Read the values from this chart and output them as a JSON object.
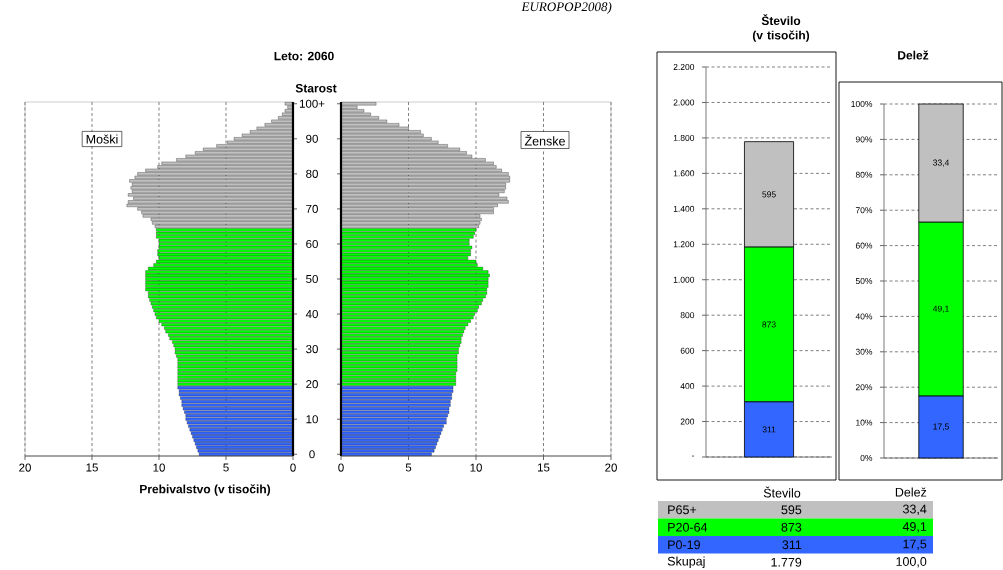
{
  "chart_data": [
    {
      "type": "bar",
      "orientation": "horizontal",
      "categories": [
        null,
        null,
        null,
        null,
        null,
        null,
        null,
        null,
        null,
        null,
        null,
        null,
        null,
        null,
        null,
        null,
        null,
        null,
        null,
        null,
        null,
        null,
        null,
        null,
        null,
        null,
        null,
        null,
        null,
        null,
        null,
        null,
        null,
        null,
        null,
        null,
        null,
        null,
        null,
        null,
        null,
        null,
        null,
        null,
        null,
        null,
        null,
        null,
        null,
        null,
        null,
        null,
        null,
        null,
        null,
        null,
        null,
        null,
        null,
        null,
        null,
        null,
        null,
        null,
        null,
        null,
        null,
        null,
        null,
        null,
        null,
        null,
        null,
        null,
        null,
        null,
        null,
        null,
        null,
        null,
        null,
        null,
        null,
        null,
        null,
        null,
        null,
        null,
        null,
        null,
        null,
        null,
        null,
        null,
        null,
        null,
        null,
        null,
        null,
        null,
        null
      ],
      "values": [
        0.6,
        0.4,
        0.6,
        0.8,
        1.1,
        1.6,
        2.1,
        2.7,
        3.2,
        3.8,
        4.4,
        4.9,
        5.7,
        6.7,
        7.3,
        8.0,
        8.7,
        9.8,
        10.1,
        11.0,
        11.6,
        11.8,
        12.2,
        12.0,
        12.1,
        12.0,
        12.3,
        11.9,
        12.3,
        12.4,
        11.6,
        11.3,
        11.2,
        10.6,
        10.5,
        10.3,
        10.2,
        10.2,
        10.2,
        10.0,
        10.0,
        10.0,
        10.1,
        10.1,
        10.0,
        10.2,
        10.4,
        10.8,
        11.0,
        11.0,
        11.0,
        11.0,
        11.0,
        11.0,
        10.8,
        10.8,
        10.7,
        10.6,
        10.5,
        10.4,
        10.3,
        10.2,
        10.0,
        9.8,
        9.6,
        9.5,
        9.3,
        9.2,
        9.0,
        8.9,
        8.8,
        8.8,
        8.7,
        8.6,
        8.6,
        8.6,
        8.6,
        8.6,
        8.6,
        8.6,
        8.6,
        8.6,
        8.5,
        8.5,
        8.4,
        8.3,
        8.3,
        8.2,
        8.1,
        8.0,
        8.0,
        7.9,
        7.8,
        7.7,
        7.6,
        7.5,
        7.4,
        7.3,
        7.2,
        7.1,
        7.0
      ],
      "colors": [
        "#c0c0c0",
        "#c0c0c0",
        "#c0c0c0",
        "#c0c0c0",
        "#c0c0c0",
        "#c0c0c0",
        "#c0c0c0",
        "#c0c0c0",
        "#c0c0c0",
        "#c0c0c0",
        "#c0c0c0",
        "#c0c0c0",
        "#c0c0c0",
        "#c0c0c0",
        "#c0c0c0",
        "#c0c0c0",
        "#c0c0c0",
        "#c0c0c0",
        "#c0c0c0",
        "#c0c0c0",
        "#c0c0c0",
        "#c0c0c0",
        "#c0c0c0",
        "#c0c0c0",
        "#c0c0c0",
        "#c0c0c0",
        "#c0c0c0",
        "#c0c0c0",
        "#c0c0c0",
        "#c0c0c0",
        "#c0c0c0",
        "#c0c0c0",
        "#c0c0c0",
        "#c0c0c0",
        "#c0c0c0",
        "#c0c0c0",
        "#00ff00",
        "#00ff00",
        "#00ff00",
        "#00ff00",
        "#00ff00",
        "#00ff00",
        "#00ff00",
        "#00ff00",
        "#00ff00",
        "#00ff00",
        "#00ff00",
        "#00ff00",
        "#00ff00",
        "#00ff00",
        "#00ff00",
        "#00ff00",
        "#00ff00",
        "#00ff00",
        "#00ff00",
        "#00ff00",
        "#00ff00",
        "#00ff00",
        "#00ff00",
        "#00ff00",
        "#00ff00",
        "#00ff00",
        "#00ff00",
        "#00ff00",
        "#00ff00",
        "#00ff00",
        "#00ff00",
        "#00ff00",
        "#00ff00",
        "#00ff00",
        "#00ff00",
        "#00ff00",
        "#00ff00",
        "#00ff00",
        "#00ff00",
        "#00ff00",
        "#00ff00",
        "#00ff00",
        "#00ff00",
        "#00ff00",
        "#00ff00",
        "#3366ff",
        "#3366ff",
        "#3366ff",
        "#3366ff",
        "#3366ff",
        "#3366ff",
        "#3366ff",
        "#3366ff",
        "#3366ff",
        "#3366ff",
        "#3366ff",
        "#3366ff",
        "#3366ff",
        "#3366ff",
        "#3366ff",
        "#3366ff",
        "#3366ff",
        "#3366ff",
        "#3366ff",
        "#3366ff"
      ],
      "xlim": [
        20,
        0
      ],
      "xticks": [
        20,
        15,
        10,
        5,
        0
      ],
      "grid": "x",
      "xlabel": "Prebivalstvo (v tisočih)",
      "annotations": [
        "EUROPOP2008)",
        "Moški"
      ]
    },
    {
      "type": "bar",
      "orientation": "horizontal",
      "title": "Leto: 2060",
      "ylabel": "Starost",
      "categories": [
        "100+",
        null,
        null,
        null,
        null,
        null,
        null,
        null,
        null,
        null,
        "90",
        null,
        null,
        null,
        null,
        null,
        null,
        null,
        null,
        null,
        "80",
        null,
        null,
        null,
        null,
        null,
        null,
        null,
        null,
        null,
        "70",
        null,
        null,
        null,
        null,
        null,
        null,
        null,
        null,
        null,
        "60",
        null,
        null,
        null,
        null,
        null,
        null,
        null,
        null,
        null,
        "50",
        null,
        null,
        null,
        null,
        null,
        null,
        null,
        null,
        null,
        "40",
        null,
        null,
        null,
        null,
        null,
        null,
        null,
        null,
        null,
        "30",
        null,
        null,
        null,
        null,
        null,
        null,
        null,
        null,
        null,
        "20",
        null,
        null,
        null,
        null,
        null,
        null,
        null,
        null,
        null,
        "10",
        null,
        null,
        null,
        null,
        null,
        null,
        null,
        null,
        null,
        "0"
      ],
      "values": [
        2.6,
        1.2,
        1.7,
        2.2,
        2.8,
        3.4,
        4.3,
        5.0,
        5.9,
        6.1,
        6.7,
        7.2,
        7.9,
        8.8,
        9.3,
        9.7,
        10.7,
        11.3,
        11.5,
        11.9,
        12.4,
        12.5,
        12.5,
        12.2,
        12.2,
        12.1,
        11.7,
        12.3,
        12.4,
        11.6,
        11.3,
        11.3,
        10.3,
        10.4,
        10.3,
        10.2,
        10.0,
        9.9,
        9.8,
        9.5,
        9.5,
        9.7,
        9.6,
        9.6,
        9.4,
        10.0,
        10.1,
        10.5,
        10.9,
        11.0,
        10.9,
        10.9,
        10.9,
        10.8,
        10.8,
        10.7,
        10.5,
        10.4,
        10.2,
        10.1,
        9.9,
        9.8,
        9.6,
        9.4,
        9.2,
        9.1,
        9.0,
        8.9,
        8.9,
        8.8,
        8.7,
        8.7,
        8.6,
        8.6,
        8.6,
        8.6,
        8.6,
        8.5,
        8.5,
        8.5,
        8.5,
        8.3,
        8.3,
        8.2,
        8.2,
        8.1,
        8.1,
        8.0,
        8.0,
        7.9,
        7.8,
        7.8,
        7.6,
        7.5,
        7.4,
        7.3,
        7.2,
        7.1,
        7.0,
        6.9,
        6.7
      ],
      "colors": [
        "#c0c0c0",
        "#c0c0c0",
        "#c0c0c0",
        "#c0c0c0",
        "#c0c0c0",
        "#c0c0c0",
        "#c0c0c0",
        "#c0c0c0",
        "#c0c0c0",
        "#c0c0c0",
        "#c0c0c0",
        "#c0c0c0",
        "#c0c0c0",
        "#c0c0c0",
        "#c0c0c0",
        "#c0c0c0",
        "#c0c0c0",
        "#c0c0c0",
        "#c0c0c0",
        "#c0c0c0",
        "#c0c0c0",
        "#c0c0c0",
        "#c0c0c0",
        "#c0c0c0",
        "#c0c0c0",
        "#c0c0c0",
        "#c0c0c0",
        "#c0c0c0",
        "#c0c0c0",
        "#c0c0c0",
        "#c0c0c0",
        "#c0c0c0",
        "#c0c0c0",
        "#c0c0c0",
        "#c0c0c0",
        "#c0c0c0",
        "#00ff00",
        "#00ff00",
        "#00ff00",
        "#00ff00",
        "#00ff00",
        "#00ff00",
        "#00ff00",
        "#00ff00",
        "#00ff00",
        "#00ff00",
        "#00ff00",
        "#00ff00",
        "#00ff00",
        "#00ff00",
        "#00ff00",
        "#00ff00",
        "#00ff00",
        "#00ff00",
        "#00ff00",
        "#00ff00",
        "#00ff00",
        "#00ff00",
        "#00ff00",
        "#00ff00",
        "#00ff00",
        "#00ff00",
        "#00ff00",
        "#00ff00",
        "#00ff00",
        "#00ff00",
        "#00ff00",
        "#00ff00",
        "#00ff00",
        "#00ff00",
        "#00ff00",
        "#00ff00",
        "#00ff00",
        "#00ff00",
        "#00ff00",
        "#00ff00",
        "#00ff00",
        "#00ff00",
        "#00ff00",
        "#00ff00",
        "#00ff00",
        "#3366ff",
        "#3366ff",
        "#3366ff",
        "#3366ff",
        "#3366ff",
        "#3366ff",
        "#3366ff",
        "#3366ff",
        "#3366ff",
        "#3366ff",
        "#3366ff",
        "#3366ff",
        "#3366ff",
        "#3366ff",
        "#3366ff",
        "#3366ff",
        "#3366ff",
        "#3366ff",
        "#3366ff",
        "#3366ff"
      ],
      "xlim": [
        0,
        20
      ],
      "xticks": [
        0,
        5,
        10,
        15,
        20
      ],
      "grid": "x",
      "annotations": [
        "Ženske"
      ]
    },
    {
      "type": "bar",
      "stacked": true,
      "title": "Število (v tisočih)",
      "categories": [
        null
      ],
      "series": [
        {
          "name": "P0-19",
          "color": "#3366ff",
          "values": [
            311
          ],
          "value_labels": [
            "311"
          ]
        },
        {
          "name": "P20-64",
          "color": "#00ff00",
          "values": [
            873
          ],
          "value_labels": [
            "873"
          ]
        },
        {
          "name": "P65+",
          "color": "#c0c0c0",
          "values": [
            595
          ],
          "value_labels": [
            "595"
          ]
        }
      ],
      "ylim": [
        0,
        2200
      ],
      "yticks": [
        {
          "value": 0,
          "label": "-"
        },
        200,
        400,
        600,
        800,
        {
          "value": 1000,
          "label": "1.000"
        },
        {
          "value": 1200,
          "label": "1.200"
        },
        {
          "value": 1400,
          "label": "1.400"
        },
        {
          "value": 1600,
          "label": "1.600"
        },
        {
          "value": 1800,
          "label": "1.800"
        },
        {
          "value": 2000,
          "label": "2.000"
        },
        {
          "value": 2200,
          "label": "2.200"
        }
      ],
      "grid": "y",
      "annotations": [
        "Število",
        "Skupaj",
        "1.779"
      ]
    },
    {
      "type": "bar",
      "stacked": true,
      "title": "Delež",
      "categories": [
        null
      ],
      "series": [
        {
          "color": "#3366ff",
          "values": [
            17.5
          ],
          "value_labels": [
            "17,5"
          ]
        },
        {
          "color": "#00ff00",
          "values": [
            49.1
          ],
          "value_labels": [
            "49,1"
          ]
        },
        {
          "color": "#c0c0c0",
          "values": [
            33.4
          ],
          "value_labels": [
            "33,4"
          ]
        }
      ],
      "ylim": [
        0,
        100
      ],
      "yticks": [
        {
          "value": 0,
          "label": "0%"
        },
        {
          "value": 10,
          "label": "10%"
        },
        {
          "value": 20,
          "label": "20%"
        },
        {
          "value": 30,
          "label": "30%"
        },
        {
          "value": 40,
          "label": "40%"
        },
        {
          "value": 50,
          "label": "50%"
        },
        {
          "value": 60,
          "label": "60%"
        },
        {
          "value": 70,
          "label": "70%"
        },
        {
          "value": 80,
          "label": "80%"
        },
        {
          "value": 90,
          "label": "90%"
        },
        {
          "value": 100,
          "label": "100%"
        }
      ],
      "grid": "y",
      "annotations": [
        "Delež",
        "100,0"
      ]
    }
  ]
}
